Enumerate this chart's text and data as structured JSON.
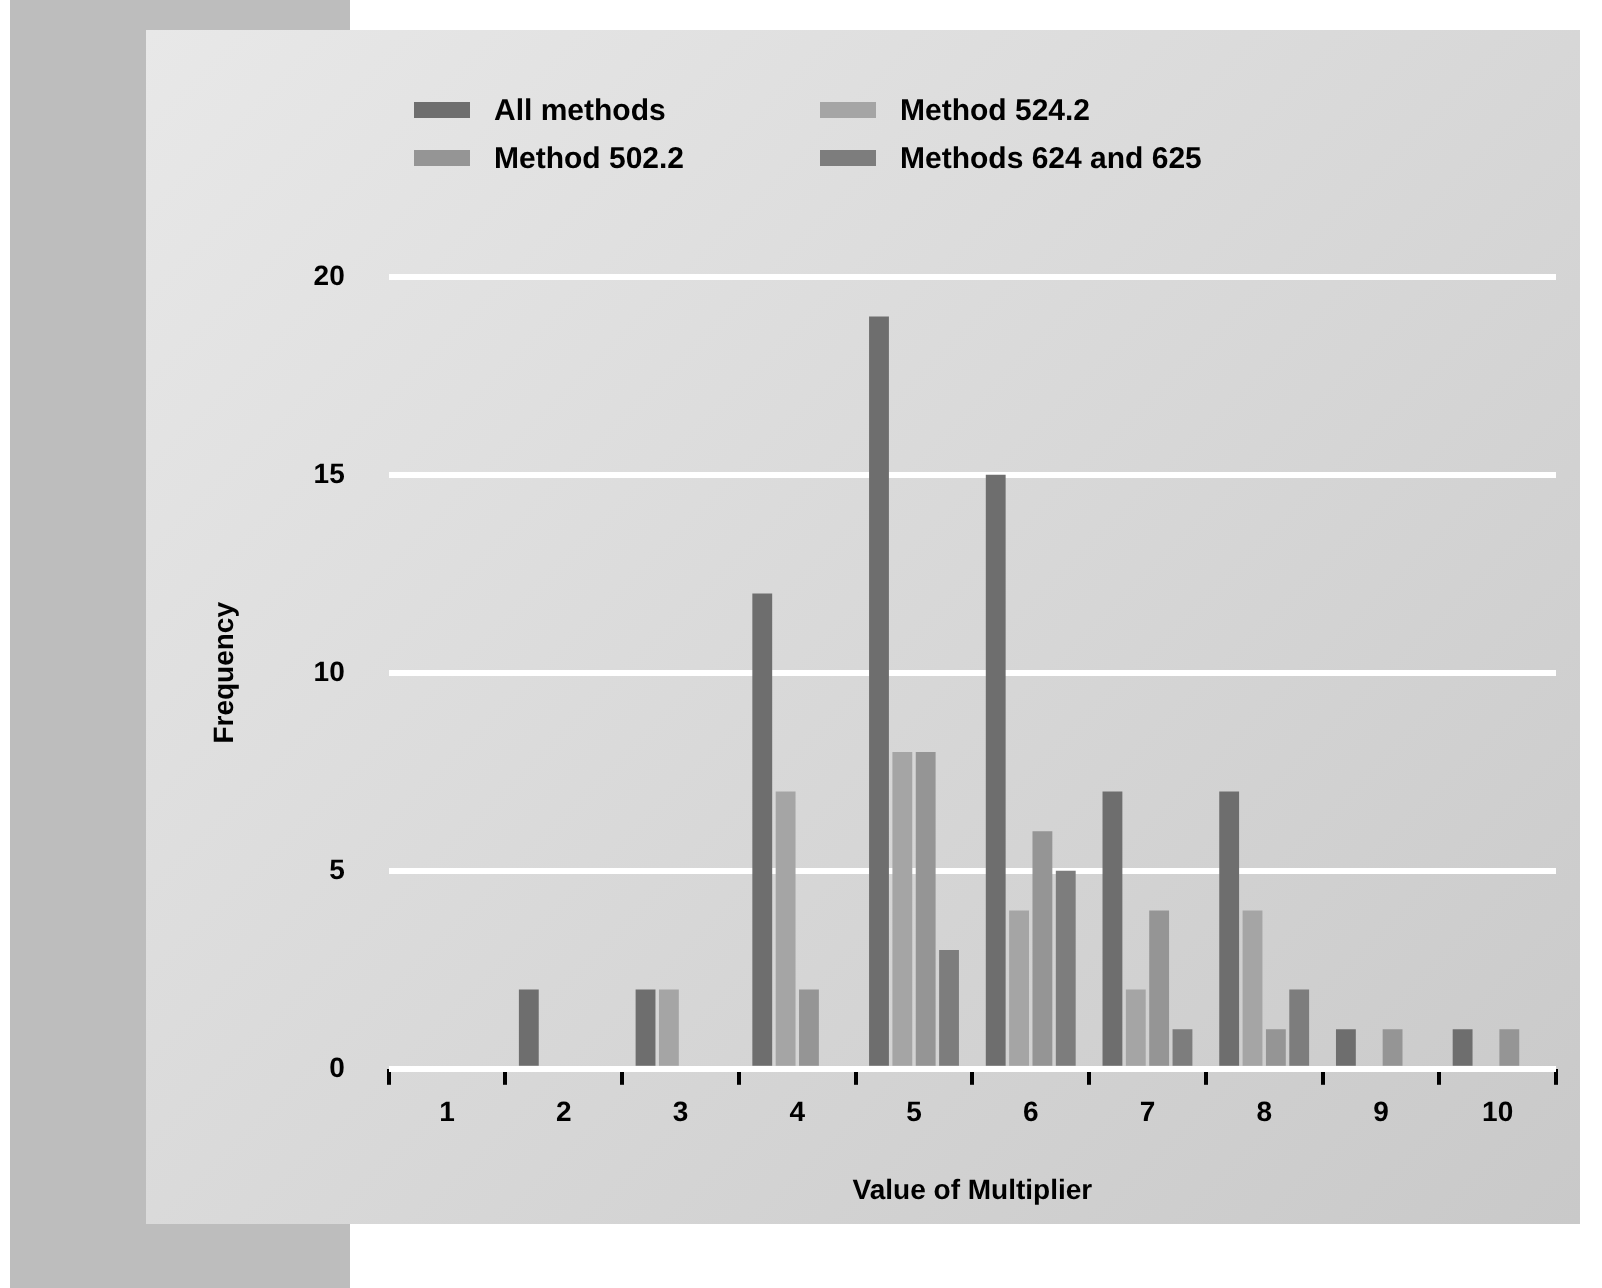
{
  "chart_data": {
    "type": "bar",
    "xlabel": "Value of Multiplier",
    "ylabel": "Frequency",
    "categories": [
      "1",
      "2",
      "3",
      "4",
      "5",
      "6",
      "7",
      "8",
      "9",
      "10"
    ],
    "series": [
      {
        "name": "All methods",
        "color": "#6e6e6e",
        "values": [
          0,
          2,
          2,
          12,
          19,
          15,
          7,
          7,
          1,
          1
        ]
      },
      {
        "name": "Method 524.2",
        "color": "#a5a5a5",
        "values": [
          0,
          0,
          2,
          7,
          8,
          4,
          2,
          4,
          0,
          0
        ]
      },
      {
        "name": "Method 502.2",
        "color": "#959595",
        "values": [
          0,
          0,
          0,
          2,
          8,
          6,
          4,
          1,
          1,
          1
        ]
      },
      {
        "name": "Methods 624 and 625",
        "color": "#7d7d7d",
        "values": [
          0,
          0,
          0,
          0,
          3,
          5,
          1,
          2,
          0,
          0
        ]
      }
    ],
    "ylim": [
      0,
      20
    ],
    "yticks": [
      0,
      5,
      10,
      15,
      20
    ],
    "grid": "y",
    "legend": "top left"
  }
}
